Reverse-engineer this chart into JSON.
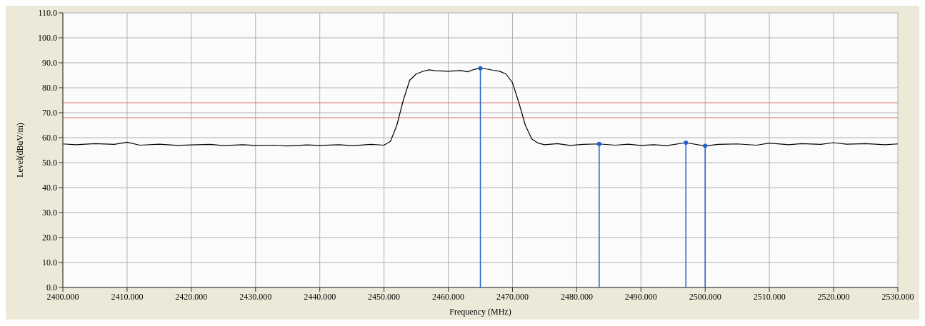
{
  "chart_data": {
    "type": "line",
    "xlabel": "Frequency (MHz)",
    "ylabel": "Level(dBuV/m)",
    "xlim": [
      2400,
      2530
    ],
    "ylim": [
      0,
      110
    ],
    "xticks": [
      {
        "value": 2400,
        "label": "2400.000"
      },
      {
        "value": 2410,
        "label": "2410.000"
      },
      {
        "value": 2420,
        "label": "2420.000"
      },
      {
        "value": 2430,
        "label": "2430.000"
      },
      {
        "value": 2440,
        "label": "2440.000"
      },
      {
        "value": 2450,
        "label": "2450.000"
      },
      {
        "value": 2460,
        "label": "2460.000"
      },
      {
        "value": 2470,
        "label": "2470.000"
      },
      {
        "value": 2480,
        "label": "2480.000"
      },
      {
        "value": 2490,
        "label": "2490.000"
      },
      {
        "value": 2500,
        "label": "2500.000"
      },
      {
        "value": 2510,
        "label": "2510.000"
      },
      {
        "value": 2520,
        "label": "2520.000"
      },
      {
        "value": 2530,
        "label": "2530.000"
      }
    ],
    "yticks": [
      {
        "value": 0,
        "label": "0.0"
      },
      {
        "value": 10,
        "label": "10.0"
      },
      {
        "value": 20,
        "label": "20.0"
      },
      {
        "value": 30,
        "label": "30.0"
      },
      {
        "value": 40,
        "label": "40.0"
      },
      {
        "value": 50,
        "label": "50.0"
      },
      {
        "value": 60,
        "label": "60.0"
      },
      {
        "value": 70,
        "label": "70.0"
      },
      {
        "value": 80,
        "label": "80.0"
      },
      {
        "value": 90,
        "label": "90.0"
      },
      {
        "value": 100,
        "label": "100.0"
      },
      {
        "value": 110,
        "label": "110.0"
      }
    ],
    "grid": true,
    "ref_lines": [
      {
        "axis": "y",
        "value": 74,
        "color": "#e07070"
      },
      {
        "axis": "y",
        "value": 68,
        "color": "#e07070"
      }
    ],
    "series": [
      {
        "color": "#000000",
        "x": [
          2400,
          2402,
          2405,
          2408,
          2410,
          2412,
          2415,
          2418,
          2420,
          2423,
          2425,
          2428,
          2430,
          2433,
          2435,
          2438,
          2440,
          2443,
          2445,
          2448,
          2450,
          2451,
          2452,
          2453,
          2454,
          2455,
          2456,
          2457,
          2458,
          2460,
          2462,
          2463,
          2464,
          2465,
          2466,
          2467,
          2468,
          2469,
          2470,
          2471,
          2472,
          2473,
          2474,
          2475,
          2477,
          2479,
          2481,
          2483.5,
          2486,
          2488,
          2490,
          2492,
          2494,
          2497,
          2500,
          2502,
          2505,
          2508,
          2510,
          2513,
          2515,
          2518,
          2520,
          2522,
          2525,
          2528,
          2530
        ],
        "values": [
          57.5,
          57.2,
          57.6,
          57.3,
          58.2,
          57.0,
          57.4,
          56.9,
          57.1,
          57.3,
          56.8,
          57.2,
          56.9,
          57.0,
          56.7,
          57.1,
          56.9,
          57.2,
          56.8,
          57.3,
          57.0,
          58.5,
          65,
          75,
          83,
          85.5,
          86.5,
          87.2,
          86.8,
          86.6,
          86.9,
          86.4,
          87.3,
          87.8,
          87.5,
          87.0,
          86.6,
          85.5,
          82,
          74,
          65,
          59.5,
          57.8,
          57.2,
          57.6,
          56.9,
          57.3,
          57.5,
          57.0,
          57.4,
          56.9,
          57.2,
          56.8,
          58.0,
          56.7,
          57.3,
          57.5,
          57.0,
          57.8,
          57.2,
          57.6,
          57.3,
          58.0,
          57.4,
          57.6,
          57.2,
          57.5
        ]
      },
      {
        "type": "lollipop",
        "color": "#2060d0",
        "marker": "circle",
        "x": [
          2465,
          2483.5,
          2497,
          2500
        ],
        "values": [
          87.8,
          57.5,
          58.0,
          56.7
        ]
      }
    ]
  }
}
